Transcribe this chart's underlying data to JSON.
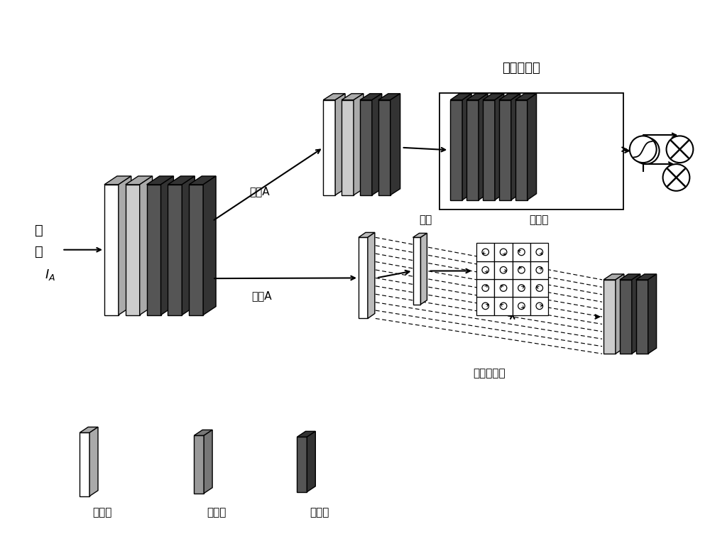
{
  "bg_color": "#ffffff",
  "text_color": "#000000",
  "light_gray": "#cccccc",
  "mid_gray": "#999999",
  "dark_gray": "#555555",
  "darker_gray": "#444444",
  "white": "#ffffff",
  "label_texture": "纹理A",
  "label_shape": "形状A",
  "label_channel_att": "通道注意力",
  "label_conv": "卷积",
  "label_offset": "偏移量",
  "label_deform_conv": "可变形卷积",
  "label_conv_layer": "卷积层",
  "label_residual": "残差块",
  "label_pool": "池化层",
  "label_input_1": "输",
  "label_input_2": "入",
  "label_IA": "$I_A$"
}
